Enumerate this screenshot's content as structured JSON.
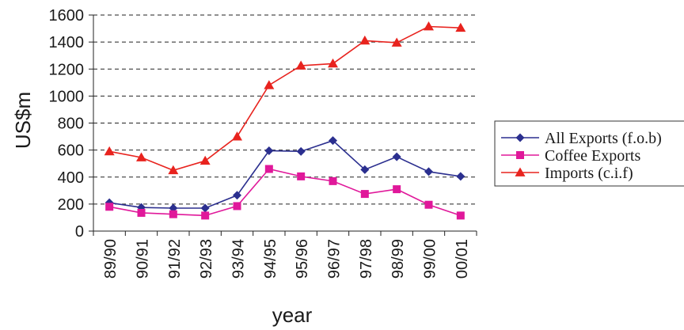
{
  "chart_data": {
    "type": "line",
    "title": "",
    "xlabel": "year",
    "ylabel": "US$m",
    "ylim": [
      0,
      1600
    ],
    "yticks": [
      0,
      200,
      400,
      600,
      800,
      1000,
      1200,
      1400,
      1600
    ],
    "grid": "horizontal dashed",
    "legend_position": "right",
    "categories": [
      "89/90",
      "90/91",
      "91/92",
      "92/93",
      "93/94",
      "94/95",
      "95/96",
      "96/97",
      "97/98",
      "98/99",
      "99/00",
      "00/01"
    ],
    "series": [
      {
        "name": "All Exports (f.o.b)",
        "color": "#2b2f8f",
        "marker": "diamond",
        "values": [
          210,
          175,
          170,
          170,
          265,
          595,
          590,
          670,
          455,
          550,
          440,
          405
        ]
      },
      {
        "name": "Coffee Exports",
        "color": "#e0189a",
        "marker": "square",
        "values": [
          180,
          135,
          125,
          115,
          185,
          460,
          405,
          370,
          275,
          310,
          195,
          115
        ]
      },
      {
        "name": "Imports (c.i.f)",
        "color": "#e8231e",
        "marker": "triangle",
        "values": [
          590,
          545,
          450,
          520,
          700,
          1080,
          1225,
          1240,
          1410,
          1395,
          1515,
          1505
        ]
      }
    ]
  }
}
